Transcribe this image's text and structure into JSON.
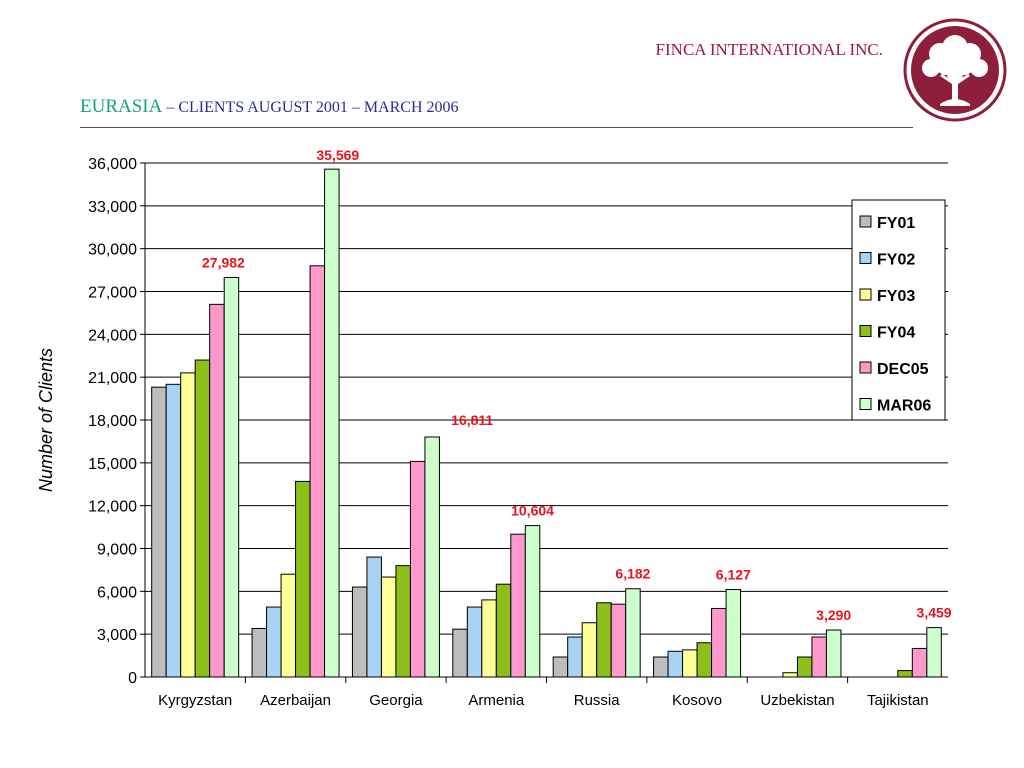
{
  "header": {
    "company": "FINCA INTERNATIONAL INC.",
    "region": "EURASIA",
    "subtitle": "– CLIENTS AUGUST 2001 – MARCH 2006"
  },
  "logo": {
    "icon": "tree-icon",
    "color": "#8e1f3a"
  },
  "chart_data": {
    "type": "bar",
    "title": "",
    "xlabel": "",
    "ylabel": "Number of Clients",
    "ylim": [
      0,
      36000
    ],
    "yticks": [
      "0",
      "3,000",
      "6,000",
      "9,000",
      "12,000",
      "15,000",
      "18,000",
      "21,000",
      "24,000",
      "27,000",
      "30,000",
      "33,000",
      "36,000"
    ],
    "grid": true,
    "legend_position": "right",
    "categories": [
      "Kyrgyzstan",
      "Azerbaijan",
      "Georgia",
      "Armenia",
      "Russia",
      "Kosovo",
      "Uzbekistan",
      "Tajikistan"
    ],
    "series": [
      {
        "name": "FY01",
        "color": "#bdbdbd",
        "values": [
          20300,
          3400,
          6300,
          3350,
          1400,
          1400,
          0,
          0
        ]
      },
      {
        "name": "FY02",
        "color": "#a9d3f5",
        "values": [
          20500,
          4900,
          8400,
          4900,
          2800,
          1800,
          0,
          0
        ]
      },
      {
        "name": "FY03",
        "color": "#ffff99",
        "values": [
          21300,
          7200,
          7000,
          5400,
          3800,
          1900,
          300,
          0
        ]
      },
      {
        "name": "FY04",
        "color": "#8cbf1a",
        "values": [
          22200,
          13700,
          7800,
          6500,
          5200,
          2400,
          1400,
          450
        ]
      },
      {
        "name": "DEC05",
        "color": "#ff99cc",
        "values": [
          26100,
          28800,
          15100,
          10000,
          5100,
          4800,
          2800,
          2000
        ]
      },
      {
        "name": "MAR06",
        "color": "#ccffcc",
        "values": [
          27982,
          35569,
          16811,
          10604,
          6182,
          6127,
          3290,
          3459
        ]
      }
    ],
    "data_labels": [
      "27,982",
      "35,569",
      "16,811",
      "10,604",
      "6,182",
      "6,127",
      "3,290",
      "3,459"
    ],
    "data_label_color": "#e8141c"
  }
}
